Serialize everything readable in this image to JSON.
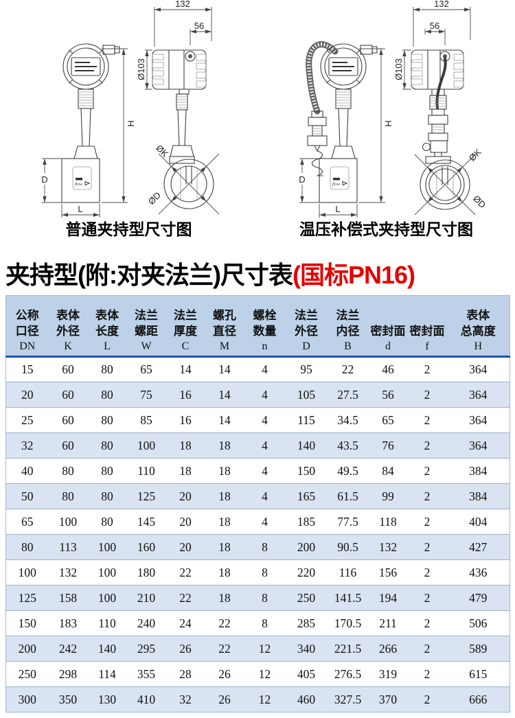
{
  "figures": [
    {
      "caption": "普通夹持型尺寸图",
      "labels": {
        "w132": "132",
        "w56": "56",
        "dia103": "Ø103",
        "h": "H",
        "dk": "ØK",
        "dd": "ØD",
        "d": "D",
        "l": "L",
        "flow": "flow"
      }
    },
    {
      "caption": "温压补偿式夹持型尺寸图",
      "labels": {
        "w132": "132",
        "w56": "56",
        "dia103": "Ø103",
        "h": "H",
        "dk": "ØK",
        "dd": "ØD",
        "d": "D",
        "l": "L",
        "flow": "flow"
      }
    }
  ],
  "title": {
    "main": "夹持型(附:对夹法兰)尺寸表",
    "highlight": "(国标PN16)"
  },
  "table": {
    "header": [
      {
        "name": [
          "公称",
          "口径"
        ],
        "symbol": "DN"
      },
      {
        "name": [
          "表体",
          "外径"
        ],
        "symbol": "K"
      },
      {
        "name": [
          "表体",
          "长度"
        ],
        "symbol": "L"
      },
      {
        "name": [
          "法兰",
          "螺距"
        ],
        "symbol": "W"
      },
      {
        "name": [
          "法兰",
          "厚度"
        ],
        "symbol": "C"
      },
      {
        "name": [
          "螺孔",
          "直径"
        ],
        "symbol": "M"
      },
      {
        "name": [
          "螺栓",
          "数量"
        ],
        "symbol": "n"
      },
      {
        "name": [
          "法兰",
          "外径"
        ],
        "symbol": "D"
      },
      {
        "name": [
          "法兰",
          "内径"
        ],
        "symbol": "B"
      },
      {
        "name": [
          "密封面"
        ],
        "symbol": "d"
      },
      {
        "name": [
          "密封面"
        ],
        "symbol": "f"
      },
      {
        "name": [
          "表体",
          "总高度"
        ],
        "symbol": "H"
      }
    ],
    "rows": [
      [
        "15",
        "60",
        "80",
        "65",
        "14",
        "14",
        "4",
        "95",
        "22",
        "46",
        "2",
        "364"
      ],
      [
        "20",
        "60",
        "80",
        "75",
        "16",
        "14",
        "4",
        "105",
        "27.5",
        "56",
        "2",
        "364"
      ],
      [
        "25",
        "60",
        "80",
        "85",
        "16",
        "14",
        "4",
        "115",
        "34.5",
        "65",
        "2",
        "364"
      ],
      [
        "32",
        "60",
        "80",
        "100",
        "18",
        "18",
        "4",
        "140",
        "43.5",
        "76",
        "2",
        "364"
      ],
      [
        "40",
        "80",
        "80",
        "110",
        "18",
        "18",
        "4",
        "150",
        "49.5",
        "84",
        "2",
        "384"
      ],
      [
        "50",
        "80",
        "80",
        "125",
        "20",
        "18",
        "4",
        "165",
        "61.5",
        "99",
        "2",
        "384"
      ],
      [
        "65",
        "100",
        "80",
        "145",
        "20",
        "18",
        "4",
        "185",
        "77.5",
        "118",
        "2",
        "404"
      ],
      [
        "80",
        "113",
        "100",
        "160",
        "20",
        "18",
        "8",
        "200",
        "90.5",
        "132",
        "2",
        "427"
      ],
      [
        "100",
        "132",
        "100",
        "180",
        "22",
        "18",
        "8",
        "220",
        "116",
        "156",
        "2",
        "436"
      ],
      [
        "125",
        "158",
        "100",
        "210",
        "22",
        "18",
        "8",
        "250",
        "141.5",
        "194",
        "2",
        "479"
      ],
      [
        "150",
        "183",
        "110",
        "240",
        "24",
        "22",
        "8",
        "285",
        "170.5",
        "211",
        "2",
        "506"
      ],
      [
        "200",
        "242",
        "140",
        "295",
        "26",
        "22",
        "12",
        "340",
        "221.5",
        "266",
        "2",
        "589"
      ],
      [
        "250",
        "298",
        "114",
        "355",
        "28",
        "26",
        "12",
        "405",
        "276.5",
        "319",
        "2",
        "615"
      ],
      [
        "300",
        "350",
        "130",
        "410",
        "32",
        "26",
        "12",
        "460",
        "327.5",
        "370",
        "2",
        "666"
      ]
    ]
  },
  "colors": {
    "accent_red": "#e60000",
    "header_bg": "#bdd2e8",
    "row_alt_bg": "#d9e3f1",
    "divider_blue": "#1d4fa8"
  }
}
